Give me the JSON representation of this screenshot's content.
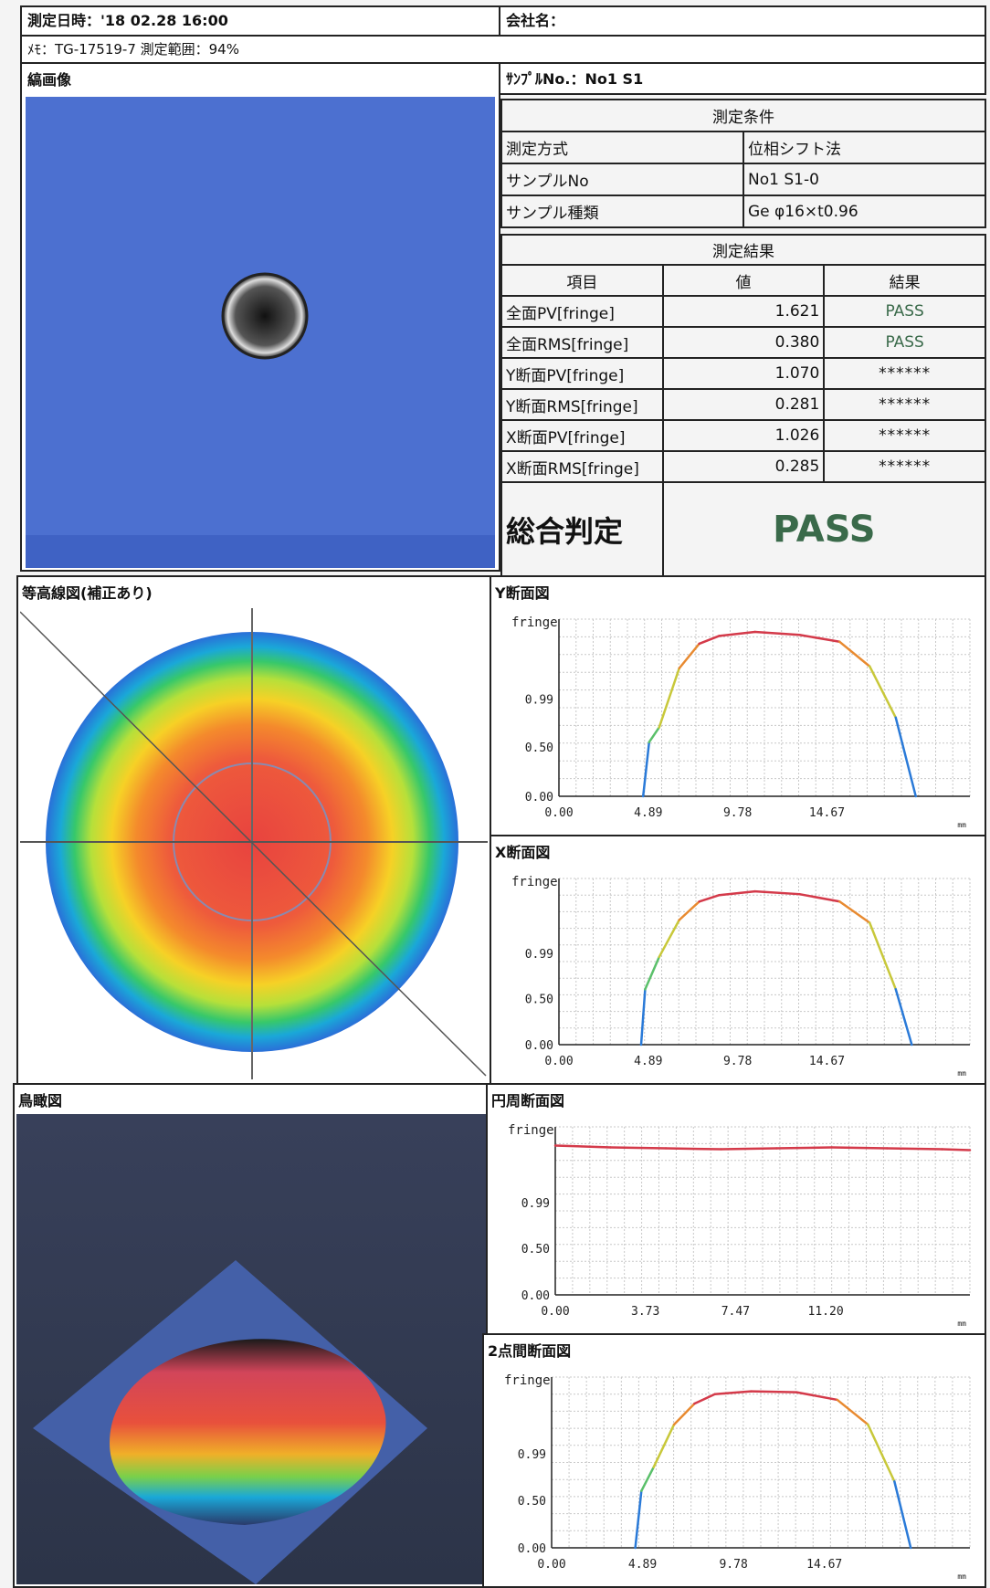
{
  "header": {
    "datetime": "測定日時：'18 02.28 16:00",
    "company": "会社名：",
    "memo": "ﾒﾓ：TG-17519-7 測定範囲：94%",
    "sample_no": "ｻﾝﾌﾟﾙNo.：No1 S1"
  },
  "fringe_image": {
    "title": "縞画像"
  },
  "conditions": {
    "title": "測定条件",
    "rows": [
      {
        "label": "測定方式",
        "value": "位相シフト法"
      },
      {
        "label": "サンプルNo",
        "value": "No1 S1-0"
      },
      {
        "label": "サンプル種類",
        "value": "Ge φ16×t0.96"
      }
    ]
  },
  "results": {
    "title": "測定結果",
    "columns": [
      "項目",
      "値",
      "結果"
    ],
    "rows": [
      {
        "item": "全面PV[fringe]",
        "value": "1.621",
        "result": "PASS"
      },
      {
        "item": "全面RMS[fringe]",
        "value": "0.380",
        "result": "PASS"
      },
      {
        "item": "Y断面PV[fringe]",
        "value": "1.070",
        "result": "******"
      },
      {
        "item": "Y断面RMS[fringe]",
        "value": "0.281",
        "result": "******"
      },
      {
        "item": "X断面PV[fringe]",
        "value": "1.026",
        "result": "******"
      },
      {
        "item": "X断面RMS[fringe]",
        "value": "0.285",
        "result": "******"
      }
    ],
    "overall_label": "総合判定",
    "overall_value": "PASS"
  },
  "contour": {
    "title": "等高線図(補正あり)"
  },
  "birdseye": {
    "title": "鳥瞰図"
  },
  "colors": {
    "page": "#f4f4f4",
    "fringe_bg": "#4a6fd0",
    "pass_text": "#3a6a4a",
    "profile_line": "#d43a4a"
  },
  "chart_data": [
    {
      "type": "line",
      "title": "Y断面図",
      "ylabel": "fringe",
      "xunit": "mm",
      "xticks": [
        "0.00",
        "4.89",
        "9.78",
        "14.67"
      ],
      "yticks": [
        "0.00",
        "0.50",
        "0.99"
      ],
      "x": [
        4.2,
        4.5,
        5.0,
        6.0,
        7.0,
        8.0,
        9.78,
        12.0,
        14.0,
        15.5,
        16.8,
        17.8
      ],
      "y": [
        0.0,
        0.55,
        0.7,
        1.3,
        1.55,
        1.63,
        1.67,
        1.64,
        1.57,
        1.32,
        0.8,
        0.0
      ],
      "xlim": [
        0,
        20.5
      ],
      "ylim": [
        0,
        1.8
      ]
    },
    {
      "type": "line",
      "title": "X断面図",
      "ylabel": "fringe",
      "xunit": "mm",
      "xticks": [
        "0.00",
        "4.89",
        "9.78",
        "14.67"
      ],
      "yticks": [
        "0.00",
        "0.50",
        "0.99"
      ],
      "x": [
        4.1,
        4.3,
        5.0,
        6.0,
        7.0,
        8.0,
        9.78,
        12.0,
        14.0,
        15.5,
        16.8,
        17.6
      ],
      "y": [
        0.0,
        0.6,
        0.95,
        1.35,
        1.55,
        1.62,
        1.66,
        1.63,
        1.55,
        1.32,
        0.6,
        0.0
      ],
      "xlim": [
        0,
        20.5
      ],
      "ylim": [
        0,
        1.8
      ]
    },
    {
      "type": "line",
      "title": "円周断面図",
      "ylabel": "fringe",
      "xunit": "mm",
      "xticks": [
        "0.00",
        "3.73",
        "7.47",
        "11.20"
      ],
      "yticks": [
        "0.00",
        "0.50",
        "0.99"
      ],
      "x": [
        0,
        2,
        4,
        6,
        8,
        10,
        12,
        14,
        15
      ],
      "y": [
        1.6,
        1.58,
        1.57,
        1.56,
        1.57,
        1.58,
        1.57,
        1.56,
        1.55
      ],
      "xlim": [
        0,
        15
      ],
      "ylim": [
        0,
        1.8
      ]
    },
    {
      "type": "line",
      "title": "2点間断面図",
      "ylabel": "fringe",
      "xunit": "mm",
      "xticks": [
        "0.00",
        "4.89",
        "9.78",
        "14.67"
      ],
      "yticks": [
        "0.00",
        "0.50",
        "0.99"
      ],
      "x": [
        4.1,
        4.4,
        5.0,
        6.0,
        7.0,
        8.0,
        9.78,
        12.0,
        14.0,
        15.5,
        16.8,
        17.6
      ],
      "y": [
        0.0,
        0.6,
        0.85,
        1.3,
        1.52,
        1.62,
        1.65,
        1.64,
        1.56,
        1.3,
        0.7,
        0.0
      ],
      "xlim": [
        0,
        20.5
      ],
      "ylim": [
        0,
        1.8
      ]
    }
  ]
}
